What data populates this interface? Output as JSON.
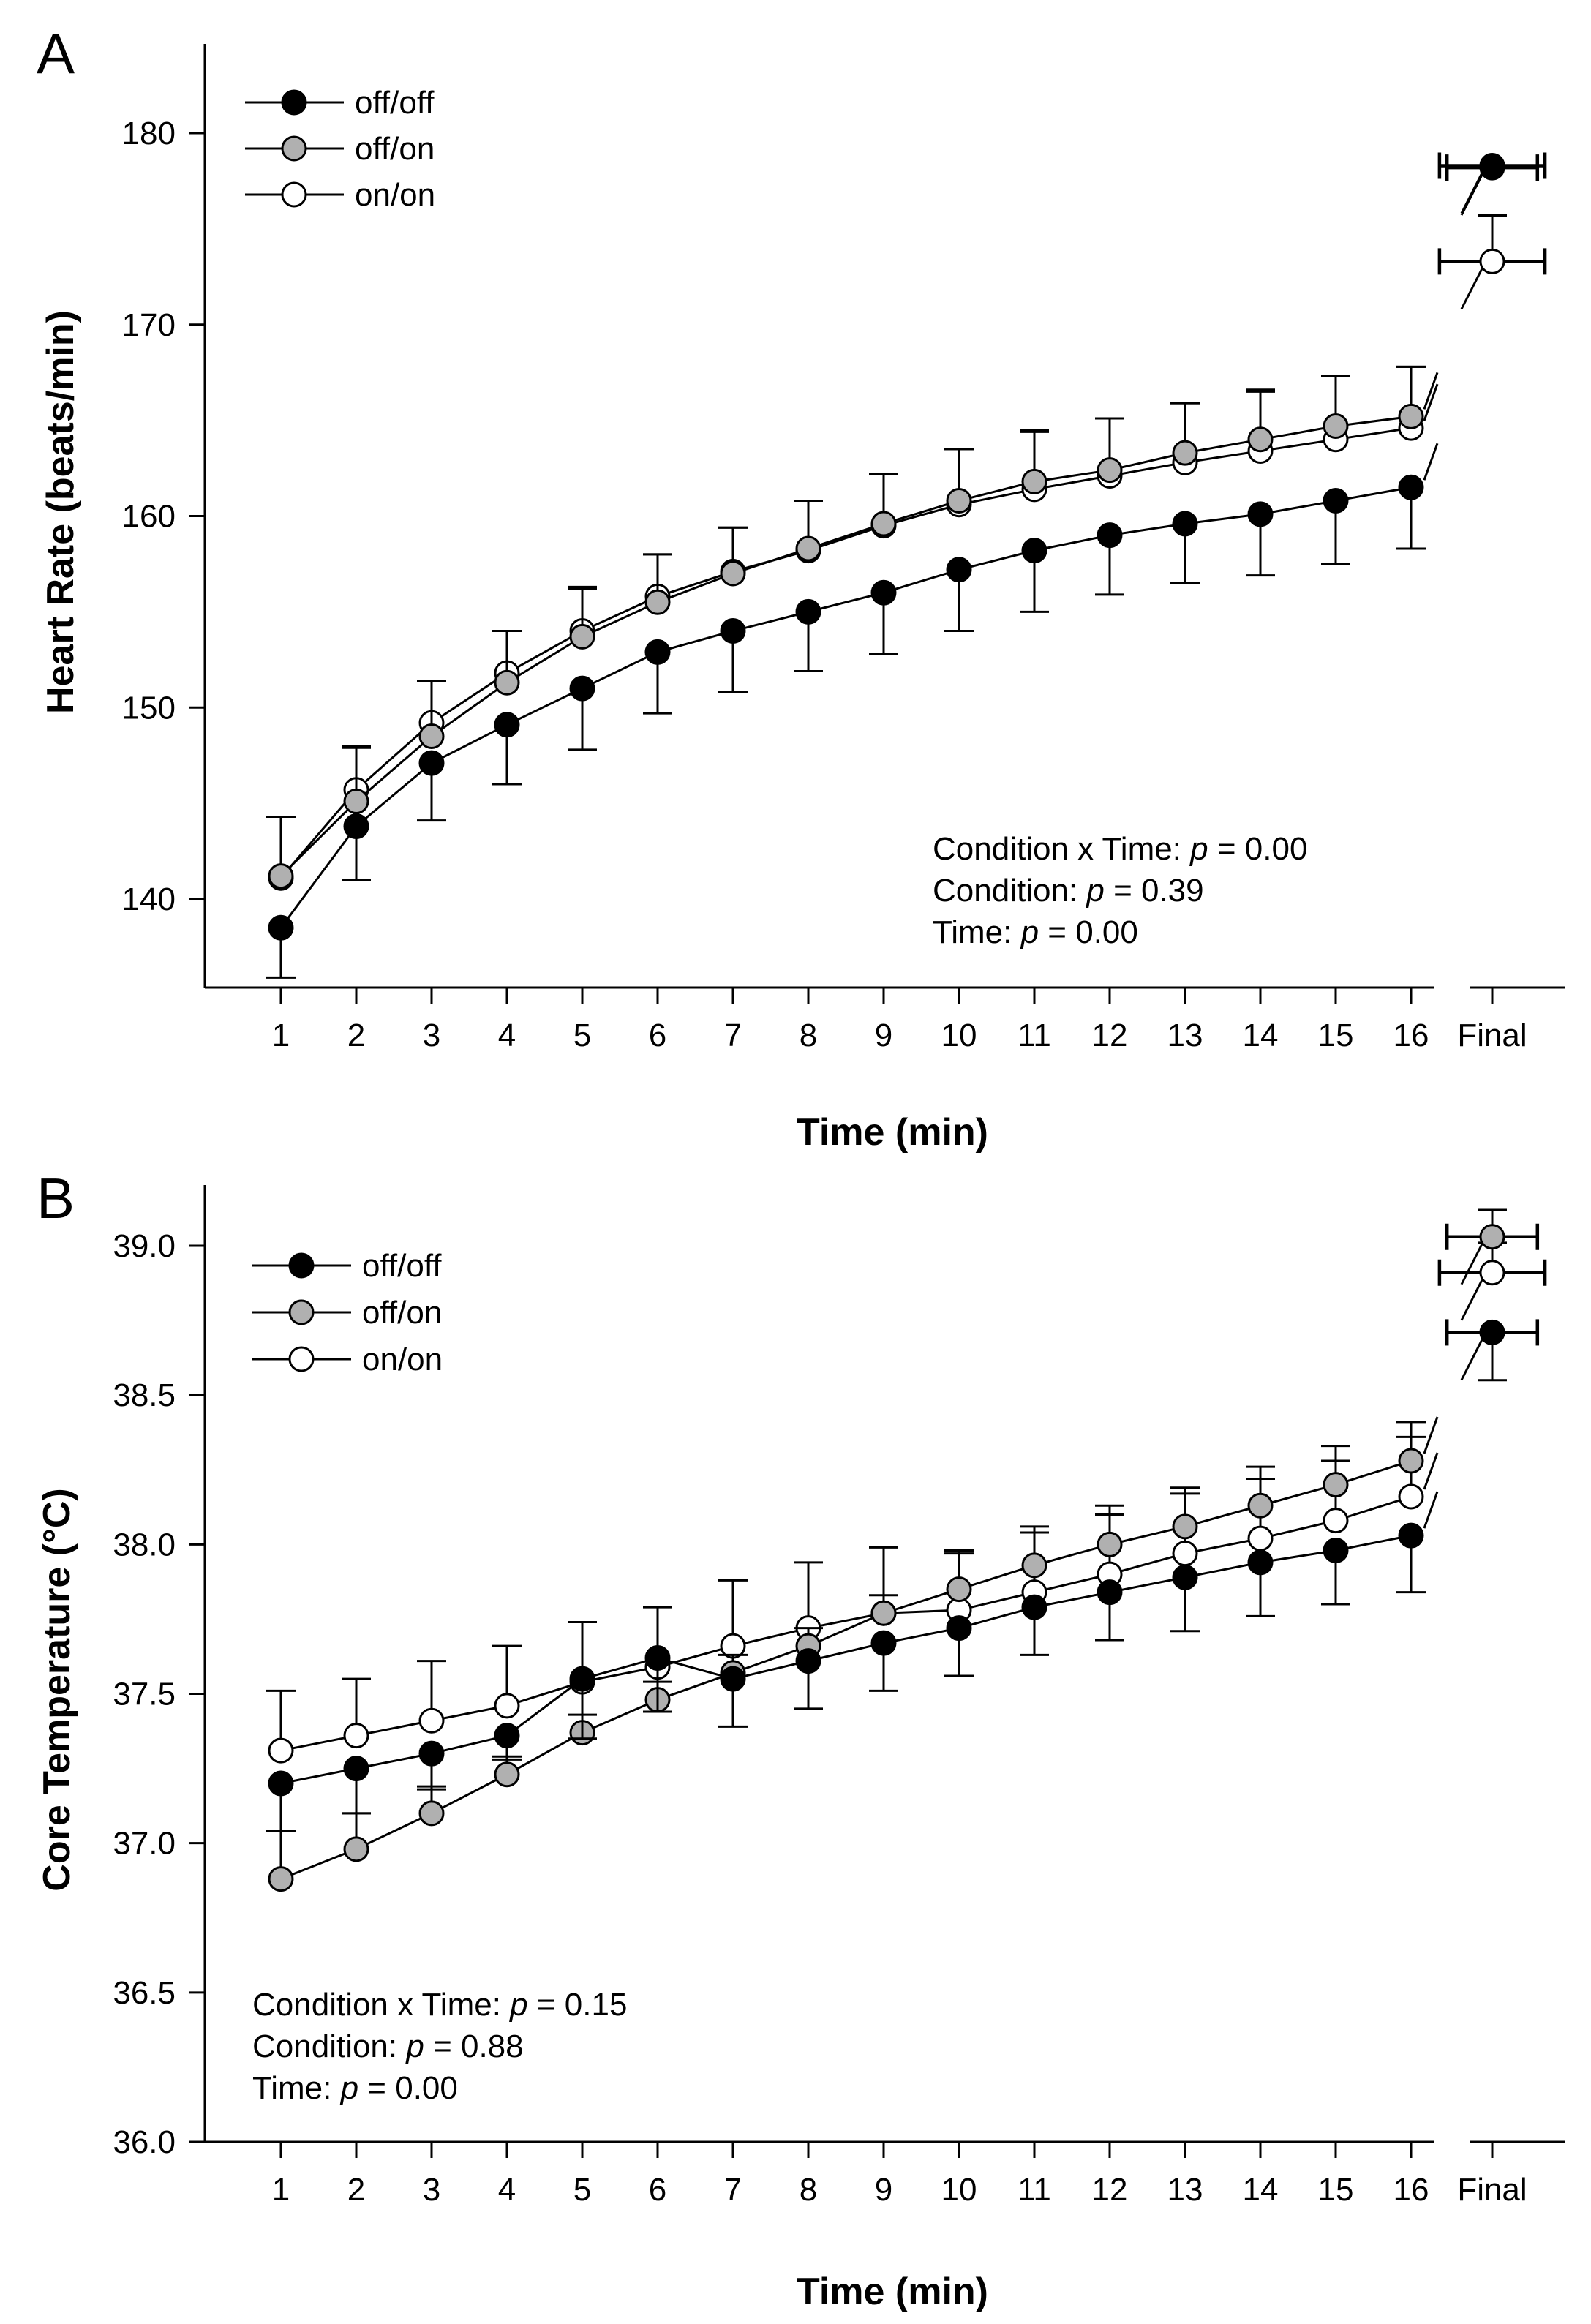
{
  "chart_data": [
    {
      "type": "line",
      "panel_label": "A",
      "xlabel": "Time (min)",
      "ylabel": "Heart Rate (beats/min)",
      "categories": [
        "1",
        "2",
        "3",
        "4",
        "5",
        "6",
        "7",
        "8",
        "9",
        "10",
        "11",
        "12",
        "13",
        "14",
        "15",
        "16"
      ],
      "final_label": "Final",
      "ylim": [
        135,
        182
      ],
      "yticks": [
        140,
        150,
        160,
        170,
        180
      ],
      "ytick_labels": [
        "140",
        "150",
        "160",
        "170",
        "180"
      ],
      "legend_position": "top-left",
      "series": [
        {
          "name": "off/off",
          "color": "#000000",
          "values": [
            138.5,
            143.8,
            147.1,
            149.1,
            151.0,
            152.9,
            154.0,
            155.0,
            156.0,
            157.2,
            158.2,
            159.0,
            159.6,
            160.1,
            160.8,
            161.5
          ],
          "errors": [
            2.6,
            2.8,
            3.0,
            3.1,
            3.2,
            3.2,
            3.2,
            3.1,
            3.2,
            3.2,
            3.2,
            3.1,
            3.1,
            3.2,
            3.3,
            3.2
          ],
          "final": 178.3,
          "final_yerr": 0,
          "final_xerr": 0.7
        },
        {
          "name": "off/on",
          "color": "#b0b0b0",
          "values": [
            141.2,
            145.1,
            148.5,
            151.3,
            153.7,
            155.5,
            157.0,
            158.3,
            159.6,
            160.8,
            161.8,
            162.4,
            163.3,
            164.0,
            164.7,
            165.2
          ],
          "errors": [
            3.1,
            2.8,
            2.9,
            2.7,
            2.6,
            2.5,
            2.4,
            2.5,
            2.6,
            2.7,
            2.7,
            2.7,
            2.6,
            2.6,
            2.6,
            2.6
          ],
          "final": 178.2,
          "final_yerr": 0,
          "final_xerr": 0.6
        },
        {
          "name": "on/on",
          "color": "#ffffff",
          "values": [
            141.1,
            145.7,
            149.2,
            151.8,
            154.0,
            155.8,
            157.1,
            158.2,
            159.5,
            160.6,
            161.4,
            162.1,
            162.8,
            163.4,
            164.0,
            164.6
          ],
          "errors": [
            3.2,
            2.3,
            2.2,
            2.2,
            2.2,
            2.2,
            2.3,
            2.6,
            2.7,
            2.9,
            3.0,
            3.0,
            3.1,
            3.1,
            3.3,
            3.2
          ],
          "final": 173.3,
          "final_yerr": 2.4,
          "final_xerr": 0.7
        }
      ],
      "annotations": [
        {
          "label": "Condition x Time: ",
          "italic": "p",
          "value": " = 0.00"
        },
        {
          "label": "Condition: ",
          "italic": "p",
          "value": " = 0.39"
        },
        {
          "label": "Time: ",
          "italic": "p",
          "value": " = 0.00"
        }
      ]
    },
    {
      "type": "line",
      "panel_label": "B",
      "xlabel": "Time (min)",
      "ylabel": "Core Temperature (°C)",
      "categories": [
        "1",
        "2",
        "3",
        "4",
        "5",
        "6",
        "7",
        "8",
        "9",
        "10",
        "11",
        "12",
        "13",
        "14",
        "15",
        "16"
      ],
      "final_label": "Final",
      "ylim": [
        36.0,
        39.15
      ],
      "yticks": [
        36.0,
        36.5,
        37.0,
        37.5,
        38.0,
        38.5,
        39.0
      ],
      "ytick_labels": [
        "36.0",
        "36.5",
        "37.0",
        "37.5",
        "38.0",
        "38.5",
        "39.0"
      ],
      "legend_position": "top-left",
      "series": [
        {
          "name": "off/off",
          "color": "#000000",
          "values": [
            37.2,
            37.25,
            37.3,
            37.36,
            37.55,
            37.62,
            37.55,
            37.61,
            37.67,
            37.72,
            37.79,
            37.84,
            37.89,
            37.94,
            37.98,
            38.03
          ],
          "errors": [
            0.16,
            0.15,
            0.12,
            0.08,
            0.2,
            0.18,
            0.16,
            0.16,
            0.16,
            0.16,
            0.16,
            0.16,
            0.18,
            0.18,
            0.18,
            0.19
          ],
          "final": 38.71,
          "final_yerr": 0.16,
          "final_xerr": 0.6
        },
        {
          "name": "off/on",
          "color": "#b0b0b0",
          "values": [
            36.88,
            36.98,
            37.1,
            37.23,
            37.37,
            37.48,
            37.57,
            37.66,
            37.77,
            37.85,
            37.93,
            38.0,
            38.06,
            38.13,
            38.2,
            38.28
          ],
          "errors": [
            0.16,
            0.12,
            0.09,
            0.06,
            0.06,
            0.06,
            0.06,
            0.06,
            0.06,
            0.12,
            0.13,
            0.13,
            0.13,
            0.13,
            0.13,
            0.13
          ],
          "final": 39.03,
          "final_yerr": 0.09,
          "final_xerr": 0.6
        },
        {
          "name": "on/on",
          "color": "#ffffff",
          "values": [
            37.31,
            37.36,
            37.41,
            37.46,
            37.54,
            37.59,
            37.66,
            37.72,
            37.77,
            37.78,
            37.84,
            37.9,
            37.97,
            38.02,
            38.08,
            38.16
          ],
          "errors": [
            0.2,
            0.19,
            0.2,
            0.2,
            0.2,
            0.2,
            0.22,
            0.22,
            0.22,
            0.2,
            0.2,
            0.2,
            0.2,
            0.2,
            0.2,
            0.2
          ],
          "final": 38.91,
          "final_yerr": 0.1,
          "final_xerr": 0.7
        }
      ],
      "annotations": [
        {
          "label": "Condition x Time: ",
          "italic": "p",
          "value": " = 0.15"
        },
        {
          "label": "Condition: ",
          "italic": "p",
          "value": " = 0.88"
        },
        {
          "label": "Time: ",
          "italic": "p",
          "value": " = 0.00"
        }
      ]
    }
  ]
}
